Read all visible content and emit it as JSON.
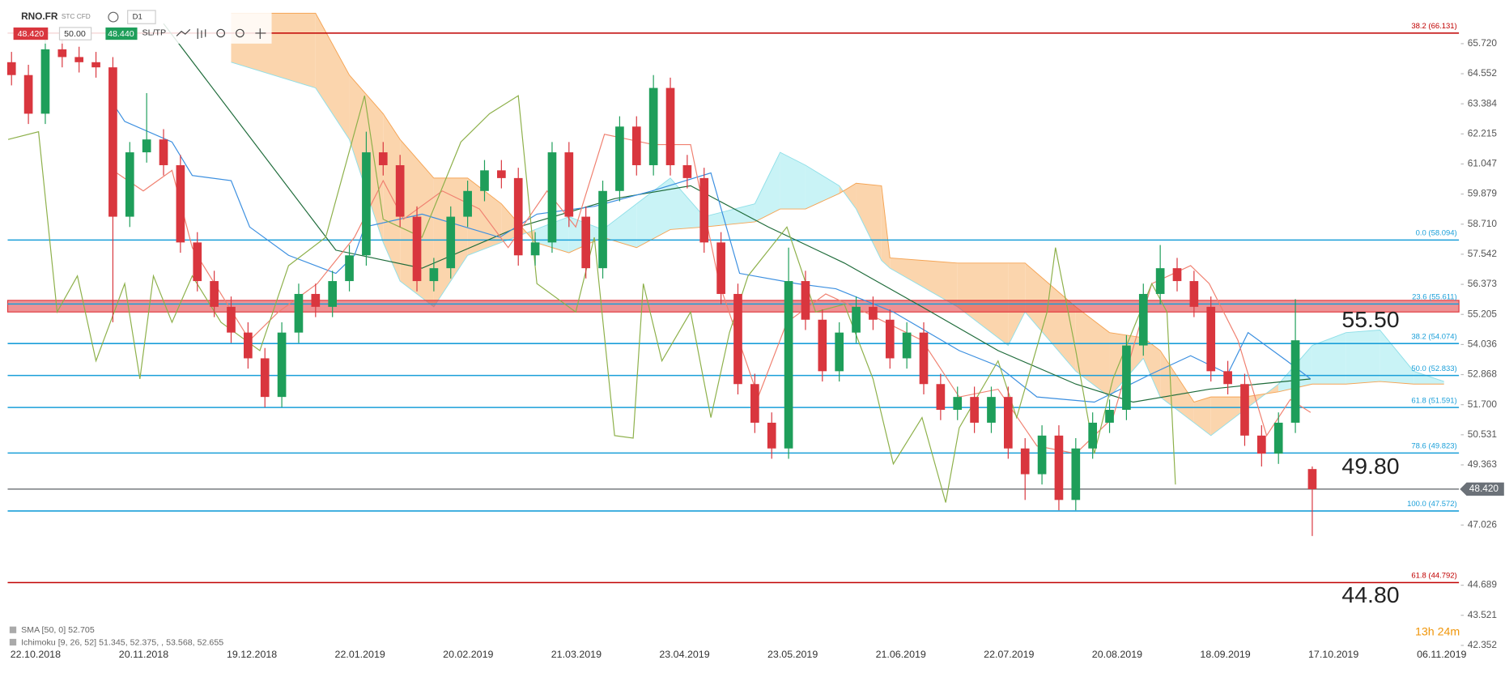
{
  "toolbar": {
    "symbol": "RNO.FR",
    "kind": "STC CFD",
    "interval": "D1",
    "sell": "48.420",
    "volume": "50.00",
    "buy": "48.440",
    "sltp": "SL/TP"
  },
  "chart_data": {
    "type": "candlestick",
    "categories": [
      "22.10.2018",
      "20.11.2018",
      "19.12.2018",
      "22.01.2019",
      "20.02.2019",
      "21.03.2019",
      "23.04.2019",
      "23.05.2019",
      "21.06.2019",
      "22.07.2019",
      "20.08.2019",
      "18.09.2019",
      "17.10.2019",
      "06.11.2019"
    ],
    "up_color": "#1e9e5a",
    "down_color": "#d9363e",
    "candles": [
      [
        65.0,
        65.4,
        64.1,
        64.5
      ],
      [
        64.5,
        64.9,
        62.6,
        63.0
      ],
      [
        63.0,
        65.9,
        62.6,
        65.5
      ],
      [
        65.5,
        65.9,
        64.8,
        65.2
      ],
      [
        65.2,
        65.6,
        64.6,
        65.0
      ],
      [
        65.0,
        65.4,
        64.4,
        64.8
      ],
      [
        64.8,
        65.2,
        54.9,
        59.0
      ],
      [
        59.0,
        61.9,
        58.6,
        61.5
      ],
      [
        61.5,
        63.8,
        61.1,
        62.0
      ],
      [
        62.0,
        62.4,
        60.6,
        61.0
      ],
      [
        61.0,
        61.4,
        57.6,
        58.0
      ],
      [
        58.0,
        58.4,
        56.1,
        56.5
      ],
      [
        56.5,
        56.9,
        55.1,
        55.5
      ],
      [
        55.5,
        55.9,
        54.1,
        54.5
      ],
      [
        54.5,
        54.9,
        53.1,
        53.5
      ],
      [
        53.5,
        53.9,
        51.6,
        52.0
      ],
      [
        52.0,
        54.9,
        51.6,
        54.5
      ],
      [
        54.5,
        56.4,
        54.1,
        56.0
      ],
      [
        56.0,
        56.4,
        55.1,
        55.5
      ],
      [
        55.5,
        56.9,
        55.1,
        56.5
      ],
      [
        56.5,
        57.9,
        56.1,
        57.5
      ],
      [
        57.5,
        62.3,
        57.1,
        61.5
      ],
      [
        61.5,
        61.9,
        60.6,
        61.0
      ],
      [
        61.0,
        61.4,
        58.6,
        59.0
      ],
      [
        59.0,
        59.4,
        56.1,
        56.5
      ],
      [
        56.5,
        57.4,
        56.1,
        57.0
      ],
      [
        57.0,
        59.4,
        56.6,
        59.0
      ],
      [
        59.0,
        60.4,
        58.6,
        60.0
      ],
      [
        60.0,
        61.2,
        59.6,
        60.8
      ],
      [
        60.8,
        61.2,
        60.1,
        60.5
      ],
      [
        60.5,
        60.9,
        57.1,
        57.5
      ],
      [
        57.5,
        58.4,
        57.1,
        58.0
      ],
      [
        58.0,
        61.9,
        57.6,
        61.5
      ],
      [
        61.5,
        61.9,
        58.6,
        59.0
      ],
      [
        59.0,
        59.4,
        56.6,
        57.0
      ],
      [
        57.0,
        60.4,
        56.6,
        60.0
      ],
      [
        60.0,
        62.9,
        59.6,
        62.5
      ],
      [
        62.5,
        62.9,
        60.6,
        61.0
      ],
      [
        61.0,
        64.5,
        60.6,
        64.0
      ],
      [
        64.0,
        64.4,
        60.6,
        61.0
      ],
      [
        61.0,
        61.4,
        60.1,
        60.5
      ],
      [
        60.5,
        60.9,
        57.6,
        58.0
      ],
      [
        58.0,
        58.4,
        55.6,
        56.0
      ],
      [
        56.0,
        56.4,
        52.1,
        52.5
      ],
      [
        52.5,
        52.9,
        50.6,
        51.0
      ],
      [
        51.0,
        51.4,
        49.6,
        50.0
      ],
      [
        50.0,
        57.8,
        49.6,
        56.5
      ],
      [
        56.5,
        56.9,
        54.6,
        55.0
      ],
      [
        55.0,
        55.4,
        52.6,
        53.0
      ],
      [
        53.0,
        54.9,
        52.6,
        54.5
      ],
      [
        54.5,
        55.9,
        54.1,
        55.5
      ],
      [
        55.5,
        55.9,
        54.6,
        55.0
      ],
      [
        55.0,
        55.4,
        53.1,
        53.5
      ],
      [
        53.5,
        54.9,
        53.1,
        54.5
      ],
      [
        54.5,
        54.9,
        52.1,
        52.5
      ],
      [
        52.5,
        52.9,
        51.1,
        51.5
      ],
      [
        51.5,
        52.4,
        51.1,
        52.0
      ],
      [
        52.0,
        52.4,
        50.6,
        51.0
      ],
      [
        51.0,
        52.4,
        50.6,
        52.0
      ],
      [
        52.0,
        52.4,
        49.6,
        50.0
      ],
      [
        50.0,
        50.4,
        48.0,
        49.0
      ],
      [
        49.0,
        50.9,
        48.6,
        50.5
      ],
      [
        50.5,
        50.9,
        47.6,
        48.0
      ],
      [
        48.0,
        50.4,
        47.6,
        50.0
      ],
      [
        50.0,
        51.4,
        49.6,
        51.0
      ],
      [
        51.0,
        51.9,
        50.6,
        51.5
      ],
      [
        51.5,
        54.4,
        51.1,
        54.0
      ],
      [
        54.0,
        56.4,
        53.6,
        56.0
      ],
      [
        56.0,
        57.9,
        55.6,
        57.0
      ],
      [
        57.0,
        57.4,
        56.1,
        56.5
      ],
      [
        56.5,
        56.9,
        55.1,
        55.5
      ],
      [
        55.5,
        55.9,
        52.6,
        53.0
      ],
      [
        53.0,
        53.4,
        52.1,
        52.5
      ],
      [
        52.5,
        52.9,
        50.1,
        50.5
      ],
      [
        50.5,
        50.9,
        49.3,
        49.8
      ],
      [
        49.8,
        51.4,
        49.4,
        51.0
      ],
      [
        51.0,
        55.8,
        50.6,
        54.2
      ],
      [
        49.2,
        49.3,
        46.6,
        48.42
      ]
    ],
    "cloud": {
      "up_color": "#c9f3f6",
      "down_color": "#fbd5ad",
      "edge_up": "#8fdfe8",
      "edge_down": "#f5a454",
      "x": [
        13,
        18,
        20,
        22,
        23,
        25,
        27,
        29,
        31,
        33,
        35,
        37,
        39,
        41,
        44,
        45.5,
        47,
        49,
        50,
        51.5,
        52,
        56,
        59,
        60,
        63,
        65,
        67,
        68,
        70,
        71,
        73,
        75,
        77,
        79,
        81,
        83,
        84.8
      ],
      "span_a": [
        65.0,
        64.0,
        62.0,
        58.0,
        56.5,
        55.5,
        57.5,
        58.0,
        58.5,
        59.0,
        58.5,
        59.5,
        60.5,
        59.0,
        59.5,
        61.5,
        61.0,
        60.2,
        59.3,
        57.3,
        57.0,
        55.5,
        54.0,
        55.3,
        53.0,
        52.0,
        53.5,
        52.0,
        51.0,
        50.5,
        51.5,
        52.5,
        54.0,
        54.5,
        54.6,
        53.0,
        52.6
      ],
      "span_b": [
        66.9,
        66.9,
        64.5,
        63.0,
        62.0,
        60.5,
        60.5,
        59.5,
        58.0,
        57.6,
        58.2,
        57.8,
        58.5,
        58.6,
        58.8,
        59.3,
        59.3,
        59.9,
        60.3,
        60.2,
        57.4,
        57.2,
        57.2,
        57.2,
        55.5,
        54.5,
        54.3,
        53.8,
        51.8,
        52.0,
        52.0,
        52.2,
        52.5,
        52.5,
        52.6,
        52.5,
        52.5
      ]
    },
    "lines": [
      {
        "color": "#1e6b3a",
        "x": [
          9,
          19.2,
          24.3,
          30,
          35.7,
          40.2,
          44.8,
          49.3,
          53.9,
          58.4,
          63,
          66.4,
          70.9,
          73.8,
          76.9
        ],
        "values": [
          66.5,
          57.7,
          57.0,
          58.6,
          59.7,
          60.2,
          58.6,
          57.2,
          55.5,
          53.8,
          52.5,
          51.8,
          52.3,
          52.5,
          52.7
        ]
      },
      {
        "color": "#3b8fe0",
        "x": [
          6,
          6.7,
          9.5,
          10.7,
          13,
          14.1,
          16.4,
          19.2,
          20.3,
          20.9,
          24.3,
          28.9,
          31.1,
          34.5,
          37.9,
          41.4,
          43.1,
          46.5,
          48.8,
          52.2,
          56.1,
          58.4,
          60.7,
          64.1,
          67.5,
          69.8,
          72,
          73.2,
          75.5,
          76.9
        ],
        "values": [
          63.4,
          62.7,
          61.9,
          60.6,
          60.4,
          58.6,
          57.5,
          56.8,
          57.5,
          58.6,
          59.1,
          58.2,
          59.1,
          59.4,
          60.0,
          60.7,
          56.8,
          56.4,
          56.2,
          55.3,
          53.8,
          53.2,
          52.0,
          51.8,
          52.9,
          53.6,
          52.9,
          54.5,
          53.4,
          52.7
        ]
      },
      {
        "color": "#f08070",
        "x": [
          6,
          7.8,
          9.5,
          10.7,
          12.4,
          14.1,
          15.8,
          18.1,
          20.3,
          22,
          23.2,
          25.5,
          27.7,
          29.4,
          31.7,
          33.4,
          35.1,
          38,
          40.2,
          41.9,
          44.2,
          45.9,
          48.2,
          50.5,
          53.9,
          56.1,
          58.4,
          60.7,
          63,
          65.2,
          67.5,
          69.8,
          70.9,
          72.6,
          74.3,
          75.7,
          76.9
        ],
        "values": [
          60.8,
          60.0,
          60.8,
          57.8,
          56.0,
          54.2,
          55.3,
          56.4,
          58.2,
          60.4,
          58.9,
          60.0,
          59.3,
          57.8,
          60.0,
          58.6,
          62.2,
          61.8,
          61.8,
          56.4,
          52.0,
          54.9,
          56.0,
          55.3,
          54.2,
          52.0,
          52.3,
          50.1,
          49.8,
          51.2,
          56.4,
          57.1,
          56.4,
          54.2,
          50.5,
          51.9,
          51.4
        ]
      },
      {
        "color": "#8db04a",
        "x": [
          -0.2,
          1.6,
          2.7,
          3.9,
          5,
          6.7,
          7.6,
          8.4,
          9.5,
          10.7,
          12.4,
          14.7,
          16.4,
          18.6,
          20.9,
          22,
          24.3,
          26.6,
          28.3,
          30,
          31.1,
          33.4,
          34.5,
          35.7,
          36.8,
          37.4,
          38.5,
          40.2,
          41.4,
          42.5,
          43.6,
          45.9,
          47.6,
          49.3,
          51,
          52.2,
          53.9,
          55.3,
          56.1,
          58.4,
          59.5,
          61.3,
          61.8,
          63,
          64.1,
          65.2,
          67.5,
          68.4,
          68.9
        ],
        "values": [
          62.0,
          62.3,
          55.3,
          56.7,
          53.4,
          56.4,
          52.7,
          56.7,
          54.9,
          56.7,
          54.9,
          53.8,
          57.1,
          58.2,
          63.7,
          58.9,
          58.2,
          61.9,
          63.0,
          63.7,
          56.4,
          55.3,
          58.2,
          50.5,
          50.4,
          56.4,
          53.4,
          55.3,
          51.2,
          54.5,
          56.7,
          58.6,
          55.3,
          55.6,
          52.7,
          49.4,
          51.2,
          47.9,
          50.8,
          53.4,
          51.2,
          55.3,
          57.8,
          53.8,
          49.8,
          52.7,
          56.4,
          55.3,
          48.6
        ]
      }
    ],
    "zone": [
      55.3,
      55.75
    ],
    "zone_color": "#e0393e",
    "levels": [
      {
        "value": 66.131,
        "label": "38.2 (66.131)",
        "color": "#c00000"
      },
      {
        "value": 58.094,
        "label": "0.0 (58.094)",
        "color": "#1a9fd9"
      },
      {
        "value": 55.611,
        "label": "23.6 (55.611)",
        "color": "#1a9fd9"
      },
      {
        "value": 54.074,
        "label": "38.2 (54.074)",
        "color": "#1a9fd9"
      },
      {
        "value": 52.833,
        "label": "50.0 (52.833)",
        "color": "#1a9fd9"
      },
      {
        "value": 51.591,
        "label": "61.8 (51.591)",
        "color": "#1a9fd9"
      },
      {
        "value": 49.823,
        "label": "78.6 (49.823)",
        "color": "#1a9fd9"
      },
      {
        "value": 47.572,
        "label": "100.0 (47.572)",
        "color": "#1a9fd9"
      },
      {
        "value": 44.792,
        "label": "61.8 (44.792)",
        "color": "#c00000"
      }
    ],
    "price_line": {
      "value": 48.42,
      "label": "48.420",
      "color": "#4a4f55"
    },
    "annotations": [
      {
        "value": 55.5,
        "text": "55.50"
      },
      {
        "value": 49.8,
        "text": "49.80"
      },
      {
        "value": 44.8,
        "text": "44.80"
      }
    ],
    "legend": [
      "SMA [50, 0] 52.705",
      "Ichimoku [9, 26, 52] 51.345, 52.375, , 53.568, 52.655"
    ],
    "timer": "13h 24m",
    "ylim": [
      42.2,
      66.9
    ],
    "yticks": [
      {
        "value": 65.72,
        "label": "65.720"
      },
      64.552,
      63.384,
      62.215,
      61.047,
      59.879,
      {
        "value": 58.71,
        "label": "58.710"
      },
      57.542,
      56.373,
      55.205,
      54.036,
      52.868,
      {
        "value": 51.7,
        "label": "51.700"
      },
      50.531,
      49.363,
      47.026,
      44.689,
      43.521,
      42.352
    ]
  }
}
